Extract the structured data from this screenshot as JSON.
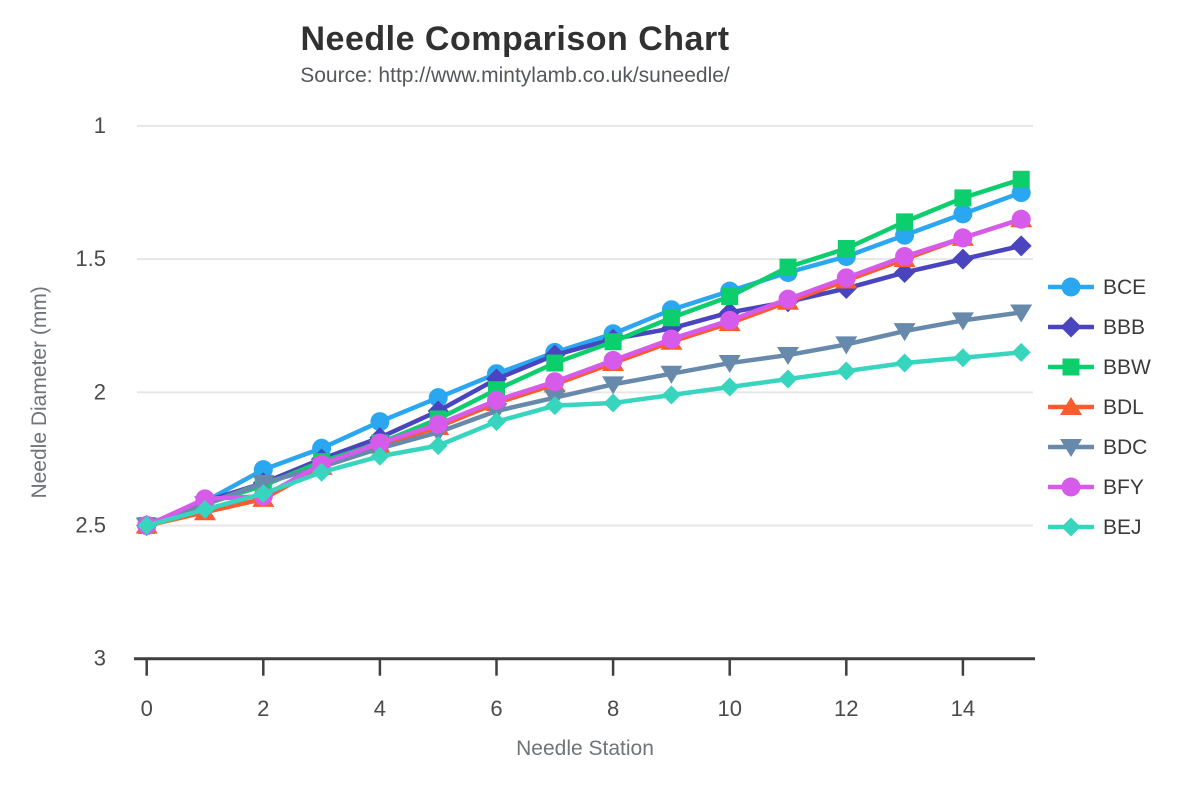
{
  "chart_data": {
    "type": "line",
    "title": "Needle Comparison Chart",
    "subtitle": "Source: http://www.mintylamb.co.uk/suneedle/",
    "xlabel": "Needle Station",
    "ylabel": "Needle Diameter (mm)",
    "x": [
      0,
      1,
      2,
      3,
      4,
      5,
      6,
      7,
      8,
      9,
      10,
      11,
      12,
      13,
      14,
      15
    ],
    "x_tick_labels": [
      0,
      2,
      4,
      6,
      8,
      10,
      12,
      14
    ],
    "y_tick_labels": [
      1,
      1.5,
      2,
      2.5,
      3
    ],
    "ylim": [
      1,
      3
    ],
    "y_axis_reversed": true,
    "grid": "horizontal",
    "legend_position": "right",
    "colors": {
      "grid": "#e7e7e7",
      "axis": "#3f3f3f",
      "tick_text": "#4b4b4b",
      "axis_title_text": "#6f747a",
      "legend_text": "#3b3b3b"
    },
    "series": [
      {
        "name": "BCE",
        "color": "#2ba6f0",
        "marker": "circle",
        "values": [
          2.5,
          2.41,
          2.29,
          2.21,
          2.11,
          2.02,
          1.93,
          1.85,
          1.78,
          1.69,
          1.62,
          1.55,
          1.49,
          1.41,
          1.33,
          1.25
        ]
      },
      {
        "name": "BBB",
        "color": "#4a45be",
        "marker": "diamond",
        "values": [
          2.5,
          2.41,
          2.34,
          2.25,
          2.17,
          2.07,
          1.95,
          1.86,
          1.8,
          1.76,
          1.7,
          1.66,
          1.61,
          1.55,
          1.5,
          1.45
        ]
      },
      {
        "name": "BBW",
        "color": "#0cce6c",
        "marker": "square",
        "values": [
          2.5,
          2.42,
          2.35,
          2.26,
          2.19,
          2.1,
          1.99,
          1.89,
          1.81,
          1.72,
          1.64,
          1.53,
          1.46,
          1.36,
          1.27,
          1.2
        ]
      },
      {
        "name": "BDL",
        "color": "#fb5b2e",
        "marker": "triangle-up",
        "values": [
          2.5,
          2.45,
          2.4,
          2.28,
          2.2,
          2.13,
          2.04,
          1.97,
          1.89,
          1.81,
          1.74,
          1.66,
          1.58,
          1.5,
          1.42,
          1.35
        ]
      },
      {
        "name": "BDC",
        "color": "#6789ac",
        "marker": "triangle-down",
        "values": [
          2.5,
          2.42,
          2.34,
          2.28,
          2.21,
          2.15,
          2.07,
          2.02,
          1.97,
          1.93,
          1.89,
          1.86,
          1.82,
          1.77,
          1.73,
          1.7
        ]
      },
      {
        "name": "BFY",
        "color": "#d75bea",
        "marker": "circle",
        "values": [
          2.5,
          2.4,
          2.39,
          2.27,
          2.19,
          2.12,
          2.03,
          1.96,
          1.88,
          1.8,
          1.73,
          1.65,
          1.57,
          1.49,
          1.42,
          1.35
        ]
      },
      {
        "name": "BEJ",
        "color": "#38d5be",
        "marker": "diamond-small",
        "values": [
          2.5,
          2.44,
          2.38,
          2.3,
          2.24,
          2.2,
          2.11,
          2.05,
          2.04,
          2.01,
          1.98,
          1.95,
          1.92,
          1.89,
          1.87,
          1.85
        ]
      }
    ]
  }
}
